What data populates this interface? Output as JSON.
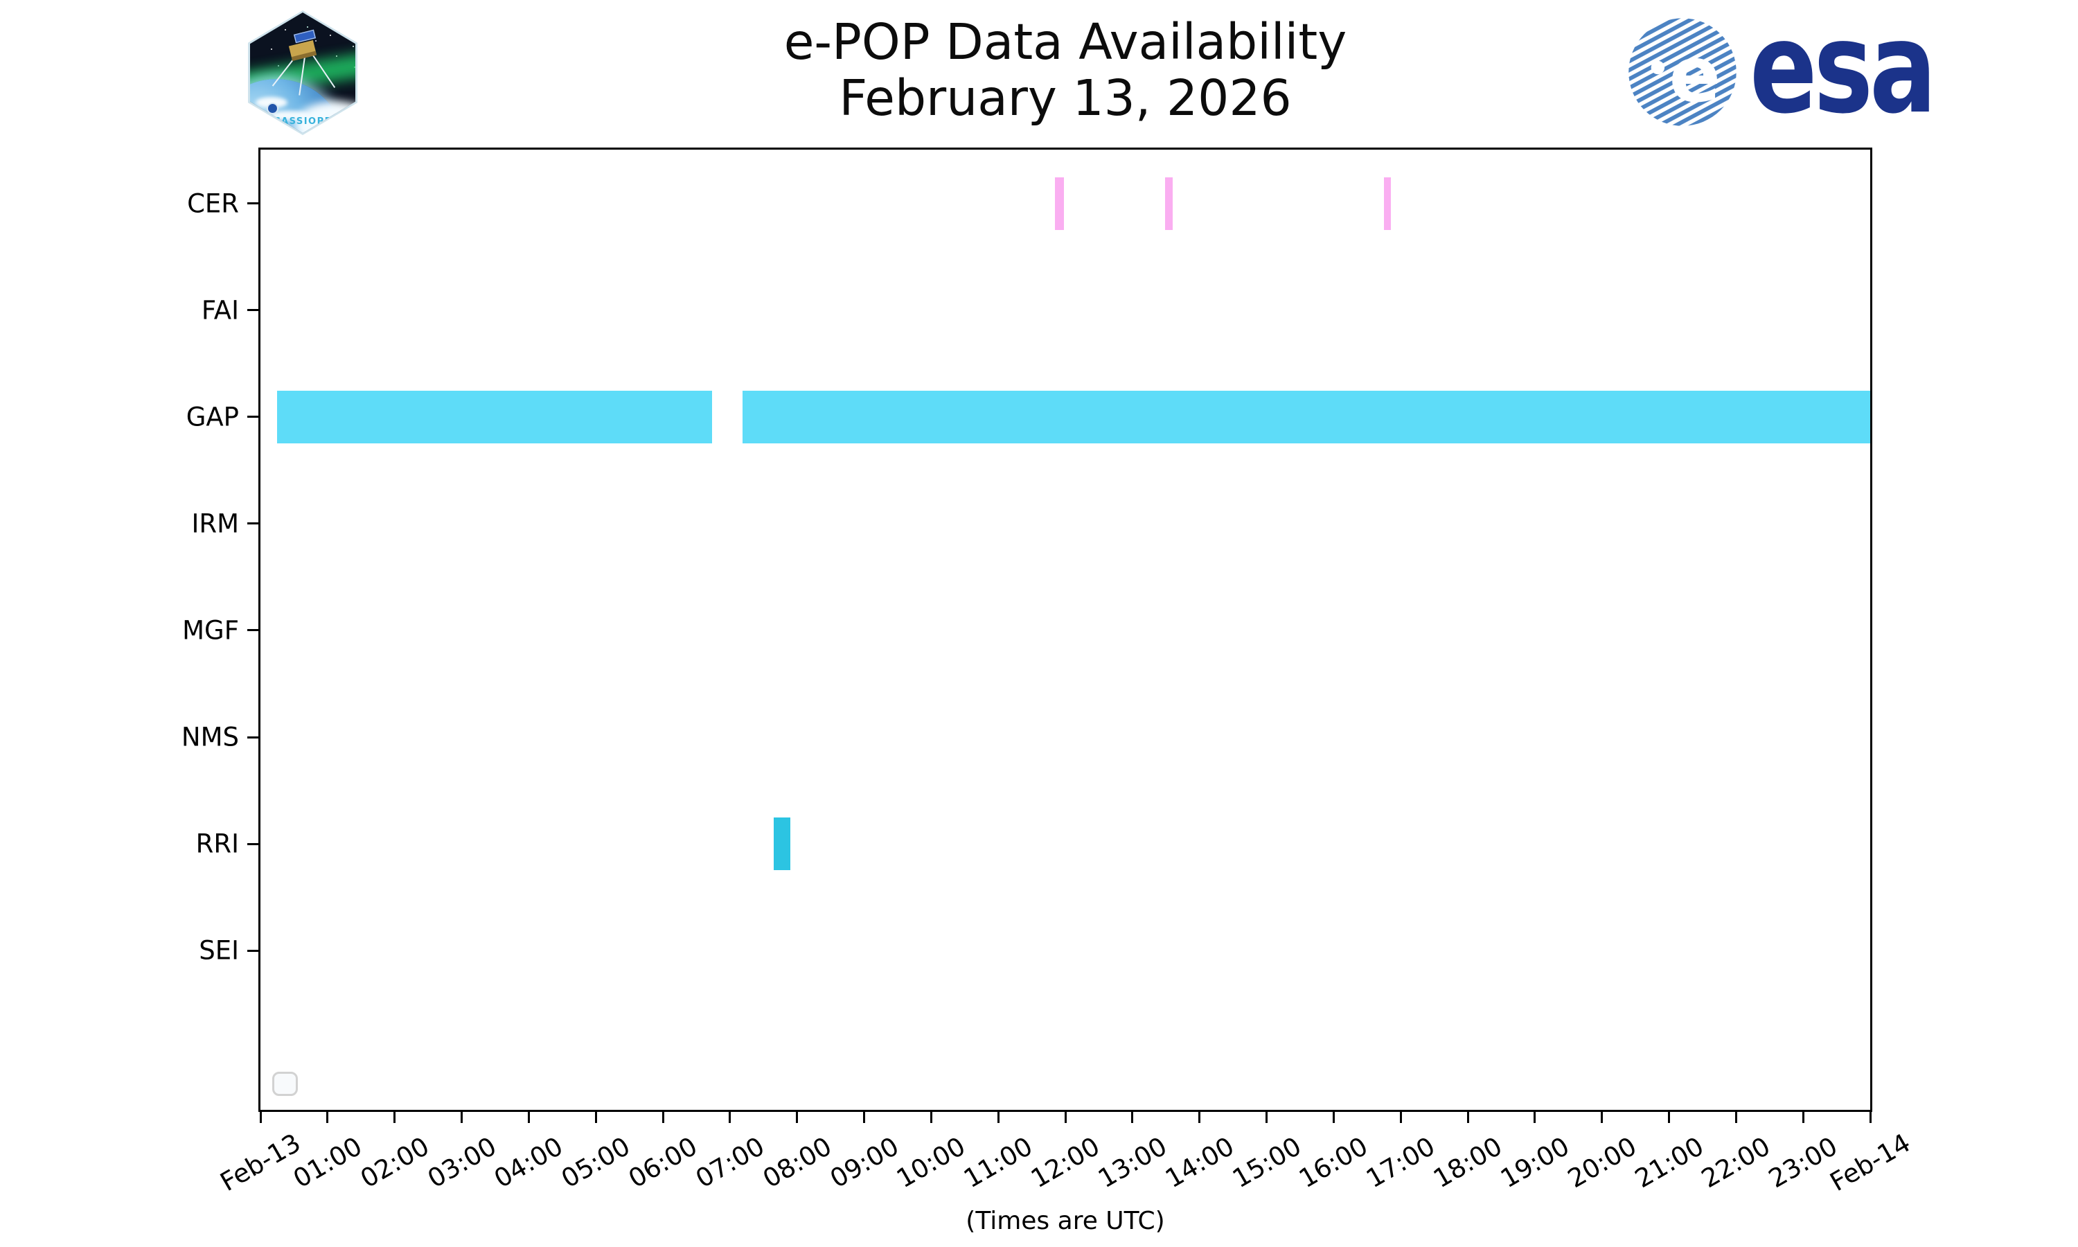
{
  "header": {
    "title_line1": "e-POP Data Availability",
    "title_line2": "February 13, 2026"
  },
  "logos": {
    "cassiope_patch_label": "CASSIOPE",
    "esa_wordmark": "esa"
  },
  "footer": {
    "note": "(Times are UTC)"
  },
  "colors": {
    "cer_bar": "#faaef1",
    "gap_bar": "#5edcf8",
    "rri_bar": "#2cc4e2",
    "axis": "#000000",
    "esa_navy": "#1b338a",
    "esa_globe_stripe": "#4c83c3",
    "legend_border": "#d2d2d2"
  },
  "chart_data": {
    "type": "timeline-availability",
    "title": "e-POP Data Availability",
    "subtitle": "February 13, 2026",
    "x_axis": {
      "start": "Feb-13 00:00",
      "end": "Feb-14 00:00",
      "hours_span": 24,
      "tick_interval_minutes": 60,
      "note": "(Times are UTC)",
      "tick_labels": [
        "Feb-13",
        "01:00",
        "02:00",
        "03:00",
        "04:00",
        "05:00",
        "06:00",
        "07:00",
        "08:00",
        "09:00",
        "10:00",
        "11:00",
        "12:00",
        "13:00",
        "14:00",
        "15:00",
        "16:00",
        "17:00",
        "18:00",
        "19:00",
        "20:00",
        "21:00",
        "22:00",
        "23:00",
        "Feb-14"
      ]
    },
    "y_axis": {
      "categories": [
        "CER",
        "FAI",
        "GAP",
        "IRM",
        "MGF",
        "NMS",
        "RRI",
        "SEI"
      ]
    },
    "series": [
      {
        "instrument": "CER",
        "color": "#faaef1",
        "intervals": [
          {
            "start": "11:51",
            "end": "11:59"
          },
          {
            "start": "13:29",
            "end": "13:36"
          },
          {
            "start": "16:45",
            "end": "16:51"
          }
        ]
      },
      {
        "instrument": "GAP",
        "color": "#5edcf8",
        "intervals": [
          {
            "start": "00:15",
            "end": "06:44"
          },
          {
            "start": "07:11",
            "end": "24:00"
          }
        ]
      },
      {
        "instrument": "RRI",
        "color": "#2cc4e2",
        "intervals": [
          {
            "start": "07:39",
            "end": "07:54"
          }
        ]
      }
    ],
    "legend": {
      "visible": true,
      "entries": []
    },
    "grid": false,
    "legend_position": "lower left"
  }
}
